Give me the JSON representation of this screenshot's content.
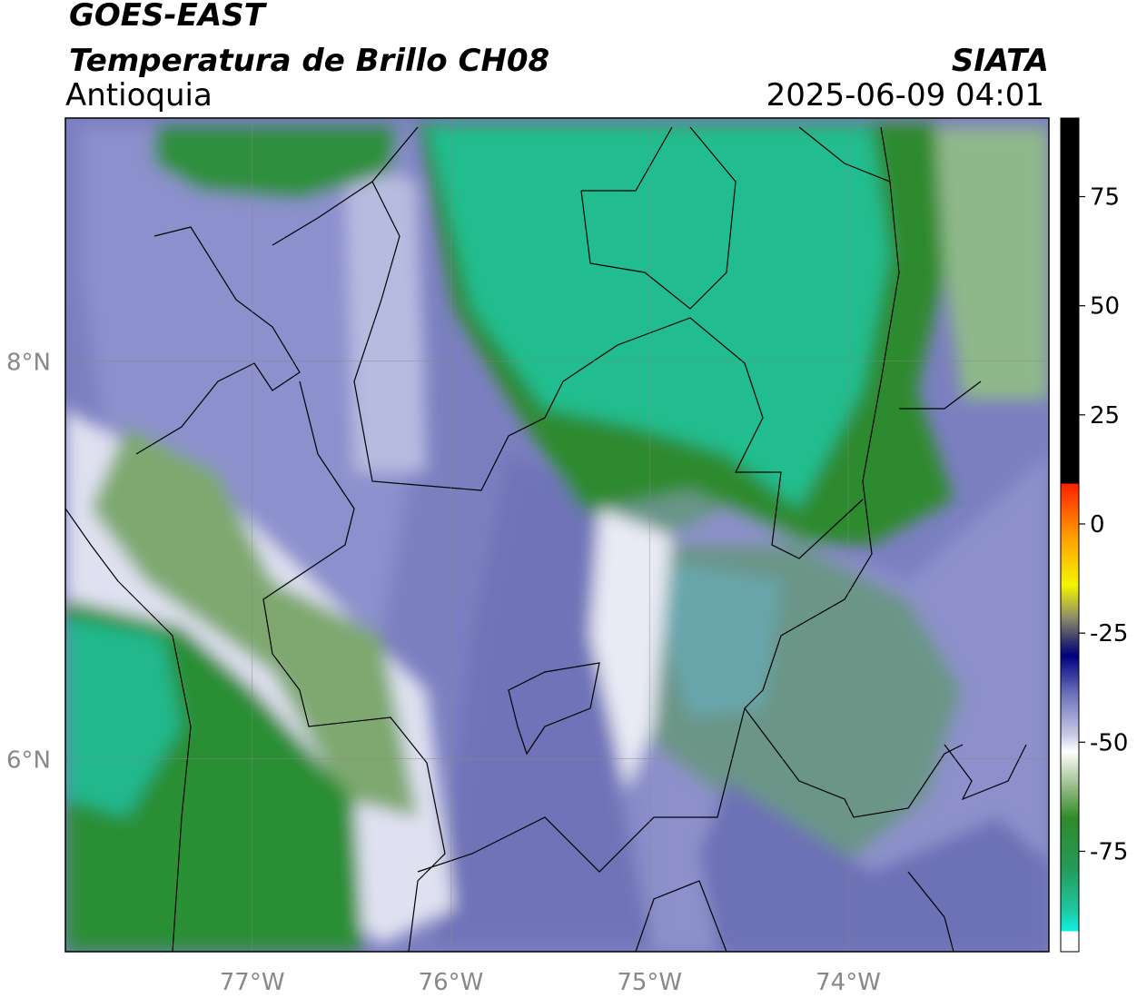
{
  "header": {
    "satellite": "GOES-EAST",
    "product": "Temperatura de Brillo CH08",
    "region": "Antioquia",
    "agency": "SIATA",
    "datetime": "2025-06-09 04:01"
  },
  "map": {
    "lonlim": [
      -77.94,
      -72.99
    ],
    "latlim": [
      5.03,
      9.22
    ],
    "lonticks": [
      {
        "value": -77,
        "label": "77°W"
      },
      {
        "value": -76,
        "label": "76°W"
      },
      {
        "value": -75,
        "label": "75°W"
      },
      {
        "value": -74,
        "label": "74°W"
      }
    ],
    "latticks": [
      {
        "value": 8,
        "label": "8°N"
      },
      {
        "value": 6,
        "label": "6°N"
      }
    ]
  },
  "colorbar": {
    "lim": [
      -98,
      93
    ],
    "ticks": [
      75,
      50,
      25,
      0,
      -25,
      -50,
      -75
    ]
  }
}
